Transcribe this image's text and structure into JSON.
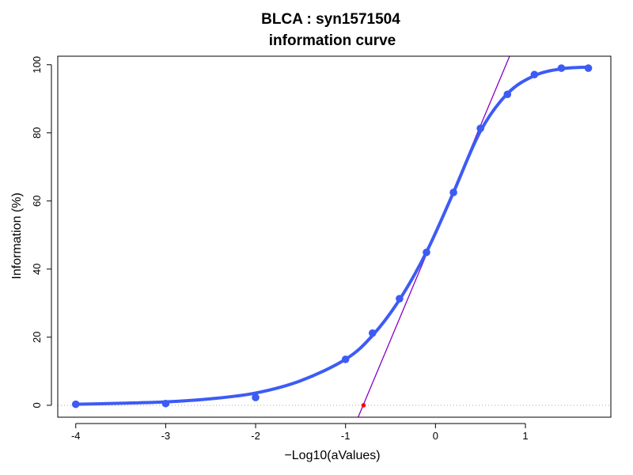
{
  "chart_data": {
    "type": "line",
    "title": "BLCA : syn1571504",
    "subtitle": "information curve",
    "xlabel": "−Log10(aValues)",
    "ylabel": "Information (%)",
    "xlim": [
      -4.2,
      1.95
    ],
    "ylim": [
      -3.5,
      102.5
    ],
    "x_ticks": [
      -4,
      -3,
      -2,
      -1,
      0,
      1
    ],
    "y_ticks": [
      0,
      20,
      40,
      60,
      80,
      100
    ],
    "grid": false,
    "series": [
      {
        "kind": "points",
        "color": "#3d5bf5",
        "x": [
          -4,
          -3,
          -2,
          -1,
          -0.7,
          -0.4,
          -0.1,
          0.2,
          0.5,
          0.8,
          1.1,
          1.4,
          1.7
        ],
        "y": [
          0.3,
          0.5,
          2.3,
          13.5,
          21.2,
          31.3,
          44.9,
          62.5,
          81.3,
          91.3,
          97.1,
          99.0,
          99.0
        ]
      },
      {
        "kind": "fitted-curve",
        "color": "#3d5bf5",
        "x": [
          -4,
          -3.5,
          -3,
          -2.5,
          -2,
          -1.5,
          -1,
          -0.7,
          -0.4,
          -0.1,
          0.2,
          0.5,
          0.8,
          1.1,
          1.4,
          1.7
        ],
        "y": [
          0.3,
          0.6,
          1.0,
          1.9,
          3.6,
          7.2,
          13.5,
          20.5,
          31.0,
          45.0,
          62.5,
          80.5,
          91.5,
          96.8,
          98.8,
          99.3
        ]
      },
      {
        "kind": "tangent-line",
        "color": "#8a00c8",
        "x": [
          -0.86,
          0.84
        ],
        "y": [
          -3.5,
          103.5
        ]
      },
      {
        "kind": "x-intercept-point",
        "color": "#ff0000",
        "x": [
          -0.8
        ],
        "y": [
          0
        ]
      },
      {
        "kind": "zero-reference-line",
        "color": "#aaaaaa",
        "y": 0
      }
    ]
  }
}
